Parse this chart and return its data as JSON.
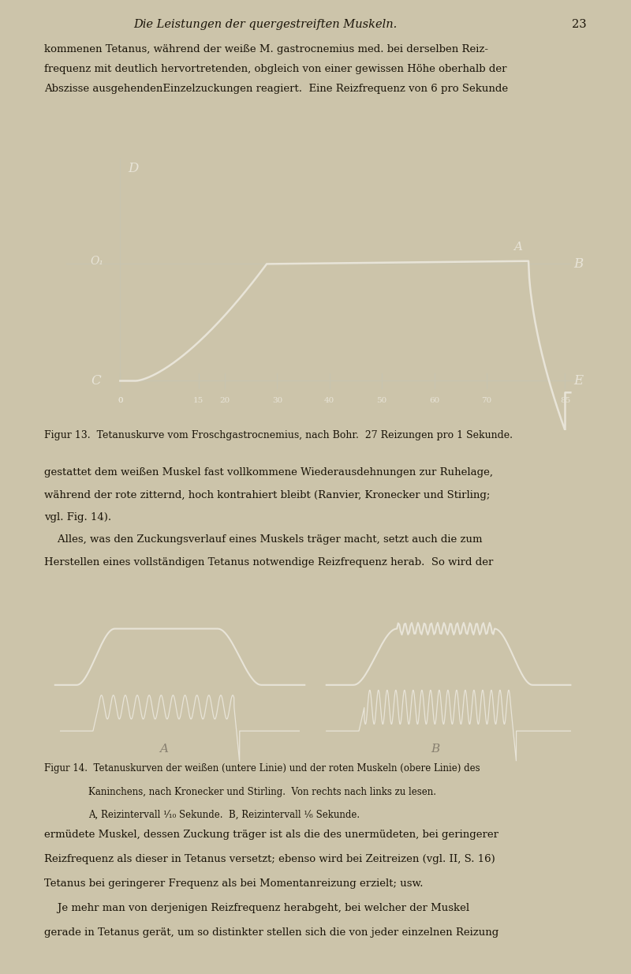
{
  "page_bg": "#ccc4aa",
  "page_title": "Die Leistungen der quergestreiften Muskeln.",
  "page_number": "23",
  "body_text_color": "#1a1408",
  "fig1_bg": "#100c06",
  "fig2_bg": "#100c06",
  "text_blocks": [
    "kommenen Tetanus, während der weiße M. gastrocnemius med. bei derselben Reiz-",
    "frequenz mit deutlich hervortretenden, obgleich von einer gewissen Höhe oberhalb der",
    "Abszisse ausgehenden⁠Einzelzuckungen reagiert.  Eine Reizfrequenz von 6 pro Sekunde"
  ],
  "fig1_caption": "Figur 13.  Tetanuskurve vom Froschgastrocnemius, nach Bohr.  27 Reizungen pro 1 Sekunde.",
  "text_blocks2": [
    "gestattet dem weißen Muskel fast vollkommene Wiederausdehnungen zur Ruhelage,",
    "während der rote zitternd, hoch kontrahiert bleibt (Ranvier, Kronecker und Stirling;",
    "vgl. Fig. 14).",
    "INDENT Alles, was den Zuckungsverlauf eines Muskels träger macht, setzt auch die zum",
    "Herstellen eines vollständigen Tetanus notwendige Reizfrequenz herab.  So wird der"
  ],
  "fig2_caption_line1": "Figur 14.  Tetanuskurven der weißen (untere Linie) und der roten Muskeln (obere Linie) des",
  "fig2_caption_line2": "Kaninchens, nach Kronecker und Stirling.  Von rechts nach links zu lesen.",
  "fig2_caption_line3": "A, Reizintervall ¹⁄₁₀ Sekunde.  B, Reizintervall ¹⁄₆ Sekunde.",
  "text_blocks3": [
    "ermüdete Muskel, dessen Zuckung träger ist als die des unermüdeten, bei geringerer",
    "Reizfrequenz als dieser in Tetanus versetzt; ebenso wird bei Zeitreizen (vgl. II, S. 16)",
    "Tetanus bei geringerer Frequenz als bei Momentanreizung erzielt; usw.",
    "INDENT Je mehr man von derjenigen Reizfrequenz herabgeht, bei welcher der Muskel",
    "gerade in Tetanus gerät, um so distinkter stellen sich die von jeder einzelnen Reizung"
  ],
  "axis_ticks": [
    0,
    15,
    20,
    30,
    40,
    50,
    60,
    70,
    85
  ],
  "curve_color": "#e8e4d8",
  "label_color": "#e8e4d8",
  "axis_color": "#c8c4b0"
}
